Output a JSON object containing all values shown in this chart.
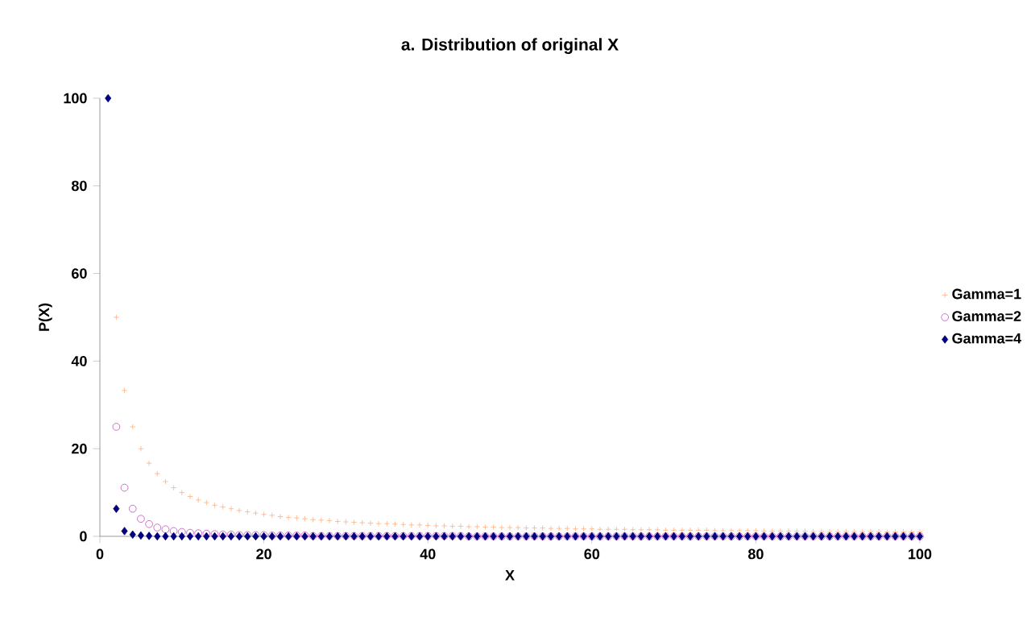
{
  "chart_data": {
    "type": "scatter",
    "title": "a. Distribution of original X",
    "xlabel": "X",
    "ylabel": "P(X)",
    "x": [
      1,
      2,
      3,
      4,
      5,
      6,
      7,
      8,
      9,
      10,
      11,
      12,
      13,
      14,
      15,
      16,
      17,
      18,
      19,
      20,
      21,
      22,
      23,
      24,
      25,
      26,
      27,
      28,
      29,
      30,
      31,
      32,
      33,
      34,
      35,
      36,
      37,
      38,
      39,
      40,
      41,
      42,
      43,
      44,
      45,
      46,
      47,
      48,
      49,
      50,
      51,
      52,
      53,
      54,
      55,
      56,
      57,
      58,
      59,
      60,
      61,
      62,
      63,
      64,
      65,
      66,
      67,
      68,
      69,
      70,
      71,
      72,
      73,
      74,
      75,
      76,
      77,
      78,
      79,
      80,
      81,
      82,
      83,
      84,
      85,
      86,
      87,
      88,
      89,
      90,
      91,
      92,
      93,
      94,
      95,
      96,
      97,
      98,
      99,
      100
    ],
    "xlim": [
      0,
      100
    ],
    "xticks": [
      0,
      20,
      40,
      60,
      80,
      100
    ],
    "ylim": [
      0,
      100
    ],
    "yticks": [
      0,
      20,
      40,
      60,
      80,
      100
    ],
    "grid": false,
    "legend": "right",
    "series": [
      {
        "name": "Gamma=1",
        "color": "#ffb07f",
        "marker": "cross",
        "values": [
          null,
          50,
          33.3,
          25,
          20,
          16.7,
          14.3,
          12.5,
          11.1,
          10,
          9.1,
          8.3,
          7.7,
          7.1,
          6.7,
          6.3,
          5.9,
          5.6,
          5.3,
          5,
          4.8,
          4.5,
          4.3,
          4.2,
          4,
          3.8,
          3.7,
          3.6,
          3.4,
          3.3,
          3.2,
          3.1,
          3,
          2.9,
          2.9,
          2.8,
          2.7,
          2.6,
          2.6,
          2.5,
          2.4,
          2.4,
          2.3,
          2.3,
          2.2,
          2.2,
          2.1,
          2.1,
          2,
          2,
          2,
          1.9,
          1.9,
          1.9,
          1.8,
          1.8,
          1.8,
          1.7,
          1.7,
          1.7,
          1.6,
          1.6,
          1.6,
          1.6,
          1.5,
          1.5,
          1.5,
          1.5,
          1.4,
          1.4,
          1.4,
          1.4,
          1.4,
          1.4,
          1.3,
          1.3,
          1.3,
          1.3,
          1.3,
          1.3,
          1.2,
          1.2,
          1.2,
          1.2,
          1.2,
          1.2,
          1.1,
          1.1,
          1.1,
          1.1,
          1.1,
          1.1,
          1.1,
          1.1,
          1.1,
          1,
          1,
          1,
          1,
          1
        ]
      },
      {
        "name": "Gamma=2",
        "color": "#c050c0",
        "marker": "circle",
        "values": [
          null,
          25,
          11.1,
          6.3,
          4,
          2.8,
          2,
          1.6,
          1.2,
          1,
          0.8,
          0.7,
          0.6,
          0.5,
          0.4,
          0.4,
          0.3,
          0.3,
          0.3,
          0.3,
          0.2,
          0.2,
          0.2,
          0.2,
          0.2,
          0.1,
          0.1,
          0.1,
          0.1,
          0.1,
          0.1,
          0.1,
          0.1,
          0.1,
          0.1,
          0.1,
          0.1,
          0.1,
          0.1,
          0.1,
          0.1,
          0.1,
          0.1,
          0.1,
          0,
          0,
          0,
          0,
          0,
          0,
          0,
          0,
          0,
          0,
          0,
          0,
          0,
          0,
          0,
          0,
          0,
          0,
          0,
          0,
          0,
          0,
          0,
          0,
          0,
          0,
          0,
          0,
          0,
          0,
          0,
          0,
          0,
          0,
          0,
          0,
          0,
          0,
          0,
          0,
          0,
          0,
          0,
          0,
          0,
          0,
          0,
          0,
          0,
          0,
          0,
          0,
          0,
          0,
          0,
          0
        ]
      },
      {
        "name": "Gamma=4",
        "color": "#000080",
        "marker": "diamond",
        "values": [
          100,
          6.3,
          1.2,
          0.4,
          0.2,
          0.1,
          0,
          0,
          0,
          0,
          0,
          0,
          0,
          0,
          0,
          0,
          0,
          0,
          0,
          0,
          0,
          0,
          0,
          0,
          0,
          0,
          0,
          0,
          0,
          0,
          0,
          0,
          0,
          0,
          0,
          0,
          0,
          0,
          0,
          0,
          0,
          0,
          0,
          0,
          0,
          0,
          0,
          0,
          0,
          0,
          0,
          0,
          0,
          0,
          0,
          0,
          0,
          0,
          0,
          0,
          0,
          0,
          0,
          0,
          0,
          0,
          0,
          0,
          0,
          0,
          0,
          0,
          0,
          0,
          0,
          0,
          0,
          0,
          0,
          0,
          0,
          0,
          0,
          0,
          0,
          0,
          0,
          0,
          0,
          0,
          0,
          0,
          0,
          0,
          0,
          0,
          0,
          0,
          0,
          0
        ]
      }
    ]
  }
}
